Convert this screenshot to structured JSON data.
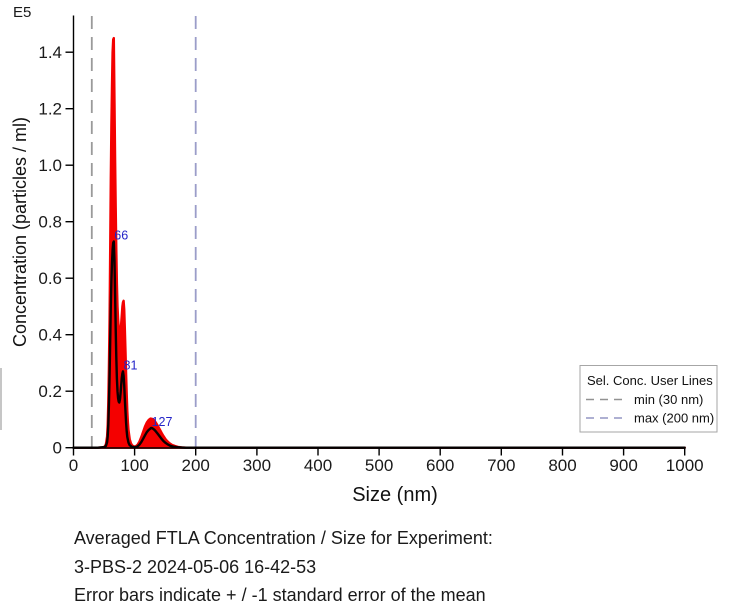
{
  "chart_data": {
    "type": "area",
    "exponent_label": "E5",
    "xlabel": "Size (nm)",
    "ylabel": "Concentration (particles / ml)",
    "xlim": [
      0,
      1000
    ],
    "ylim": [
      0,
      1.53
    ],
    "x_ticks": [
      0,
      100,
      200,
      300,
      400,
      500,
      600,
      700,
      800,
      900,
      1000
    ],
    "y_ticks": [
      0,
      0.2,
      0.4,
      0.6,
      0.8,
      1.0,
      1.2,
      1.4
    ],
    "y_tick_labels": [
      "0",
      "0.2",
      "0.4",
      "0.6",
      "0.8",
      "1.0",
      "1.2",
      "1.4"
    ],
    "grid": false,
    "colors": {
      "error_band": "#f40000",
      "mean_line": "#0a0000",
      "peak_label": "#2323c8",
      "axis": "#000000",
      "min_line": "#9a9a9a",
      "max_line": "#9b9dc9"
    },
    "series": [
      {
        "name": "upper standard error band",
        "color": "#f40000",
        "points": [
          [
            0,
            0
          ],
          [
            40,
            0
          ],
          [
            48,
            0.001
          ],
          [
            51,
            0.004
          ],
          [
            53,
            0.012
          ],
          [
            55,
            0.04
          ],
          [
            56,
            0.08
          ],
          [
            57,
            0.16
          ],
          [
            58,
            0.28
          ],
          [
            59,
            0.46
          ],
          [
            60,
            0.7
          ],
          [
            61,
            0.95
          ],
          [
            62,
            1.14
          ],
          [
            63,
            1.28
          ],
          [
            64,
            1.4
          ],
          [
            65,
            1.445
          ],
          [
            66,
            1.45
          ],
          [
            67,
            1.22
          ],
          [
            68,
            1.02
          ],
          [
            69,
            0.85
          ],
          [
            70,
            0.7
          ],
          [
            71,
            0.58
          ],
          [
            72,
            0.5
          ],
          [
            73,
            0.455
          ],
          [
            74,
            0.425
          ],
          [
            75,
            0.405
          ],
          [
            76,
            0.4
          ],
          [
            77,
            0.415
          ],
          [
            78,
            0.44
          ],
          [
            79,
            0.47
          ],
          [
            80,
            0.5
          ],
          [
            81,
            0.515
          ],
          [
            82,
            0.52
          ],
          [
            83,
            0.49
          ],
          [
            84,
            0.425
          ],
          [
            85,
            0.34
          ],
          [
            86,
            0.26
          ],
          [
            87,
            0.19
          ],
          [
            88,
            0.13
          ],
          [
            89,
            0.09
          ],
          [
            90,
            0.062
          ],
          [
            92,
            0.03
          ],
          [
            94,
            0.015
          ],
          [
            96,
            0.008
          ],
          [
            99,
            0.004
          ],
          [
            102,
            0.005
          ],
          [
            105,
            0.011
          ],
          [
            108,
            0.022
          ],
          [
            111,
            0.038
          ],
          [
            114,
            0.057
          ],
          [
            117,
            0.075
          ],
          [
            120,
            0.089
          ],
          [
            123,
            0.098
          ],
          [
            126,
            0.103
          ],
          [
            129,
            0.102
          ],
          [
            132,
            0.097
          ],
          [
            135,
            0.088
          ],
          [
            138,
            0.077
          ],
          [
            141,
            0.065
          ],
          [
            144,
            0.053
          ],
          [
            147,
            0.042
          ],
          [
            150,
            0.032
          ],
          [
            153,
            0.024
          ],
          [
            157,
            0.016
          ],
          [
            161,
            0.01
          ],
          [
            166,
            0.006
          ],
          [
            171,
            0.003
          ],
          [
            177,
            0.001
          ],
          [
            185,
            0
          ],
          [
            1000,
            0
          ]
        ]
      },
      {
        "name": "averaged FTLA concentration (mean)",
        "color": "#0a0000",
        "points": [
          [
            0,
            0
          ],
          [
            40,
            0
          ],
          [
            50,
            0.002
          ],
          [
            53,
            0.006
          ],
          [
            55,
            0.02
          ],
          [
            56,
            0.04
          ],
          [
            57,
            0.08
          ],
          [
            58,
            0.15
          ],
          [
            59,
            0.26
          ],
          [
            60,
            0.38
          ],
          [
            61,
            0.5
          ],
          [
            62,
            0.59
          ],
          [
            63,
            0.655
          ],
          [
            64,
            0.7
          ],
          [
            65,
            0.725
          ],
          [
            66,
            0.73
          ],
          [
            67,
            0.66
          ],
          [
            68,
            0.54
          ],
          [
            69,
            0.42
          ],
          [
            70,
            0.32
          ],
          [
            71,
            0.245
          ],
          [
            72,
            0.2
          ],
          [
            73,
            0.175
          ],
          [
            74,
            0.163
          ],
          [
            75,
            0.16
          ],
          [
            76,
            0.172
          ],
          [
            77,
            0.195
          ],
          [
            78,
            0.222
          ],
          [
            79,
            0.247
          ],
          [
            80,
            0.263
          ],
          [
            81,
            0.27
          ],
          [
            82,
            0.255
          ],
          [
            83,
            0.222
          ],
          [
            84,
            0.175
          ],
          [
            85,
            0.128
          ],
          [
            86,
            0.088
          ],
          [
            87,
            0.058
          ],
          [
            88,
            0.038
          ],
          [
            90,
            0.018
          ],
          [
            92,
            0.009
          ],
          [
            95,
            0.004
          ],
          [
            98,
            0.002
          ],
          [
            102,
            0.002
          ],
          [
            105,
            0.005
          ],
          [
            108,
            0.011
          ],
          [
            111,
            0.02
          ],
          [
            114,
            0.032
          ],
          [
            117,
            0.044
          ],
          [
            120,
            0.055
          ],
          [
            123,
            0.063
          ],
          [
            126,
            0.068
          ],
          [
            127,
            0.07
          ],
          [
            129,
            0.069
          ],
          [
            132,
            0.064
          ],
          [
            135,
            0.057
          ],
          [
            138,
            0.049
          ],
          [
            141,
            0.04
          ],
          [
            144,
            0.032
          ],
          [
            147,
            0.024
          ],
          [
            150,
            0.018
          ],
          [
            154,
            0.012
          ],
          [
            158,
            0.007
          ],
          [
            163,
            0.004
          ],
          [
            168,
            0.002
          ],
          [
            175,
            0.001
          ],
          [
            183,
            0
          ],
          [
            1000,
            0
          ]
        ]
      }
    ],
    "peak_labels": [
      {
        "text": "66",
        "size_nm": 66,
        "value": 0.73
      },
      {
        "text": "81",
        "size_nm": 81,
        "value": 0.27
      },
      {
        "text": "127",
        "size_nm": 127,
        "value": 0.07
      }
    ],
    "user_lines": [
      {
        "name": "min",
        "size_nm": 30,
        "color": "#9a9a9a"
      },
      {
        "name": "max",
        "size_nm": 200,
        "color": "#9b9dc9"
      }
    ],
    "legend": {
      "title": "Sel. Conc. User Lines",
      "entries": [
        {
          "label": "min (30 nm)",
          "color": "#929292"
        },
        {
          "label": "max (200 nm)",
          "color": "#9395c4"
        }
      ],
      "position": "right-bottom-inside"
    }
  },
  "caption": {
    "line1": "Averaged FTLA Concentration / Size for Experiment:",
    "line2": "3-PBS-2 2024-05-06 16-42-53",
    "line3": "Error bars indicate + / -1 standard error of the mean"
  }
}
